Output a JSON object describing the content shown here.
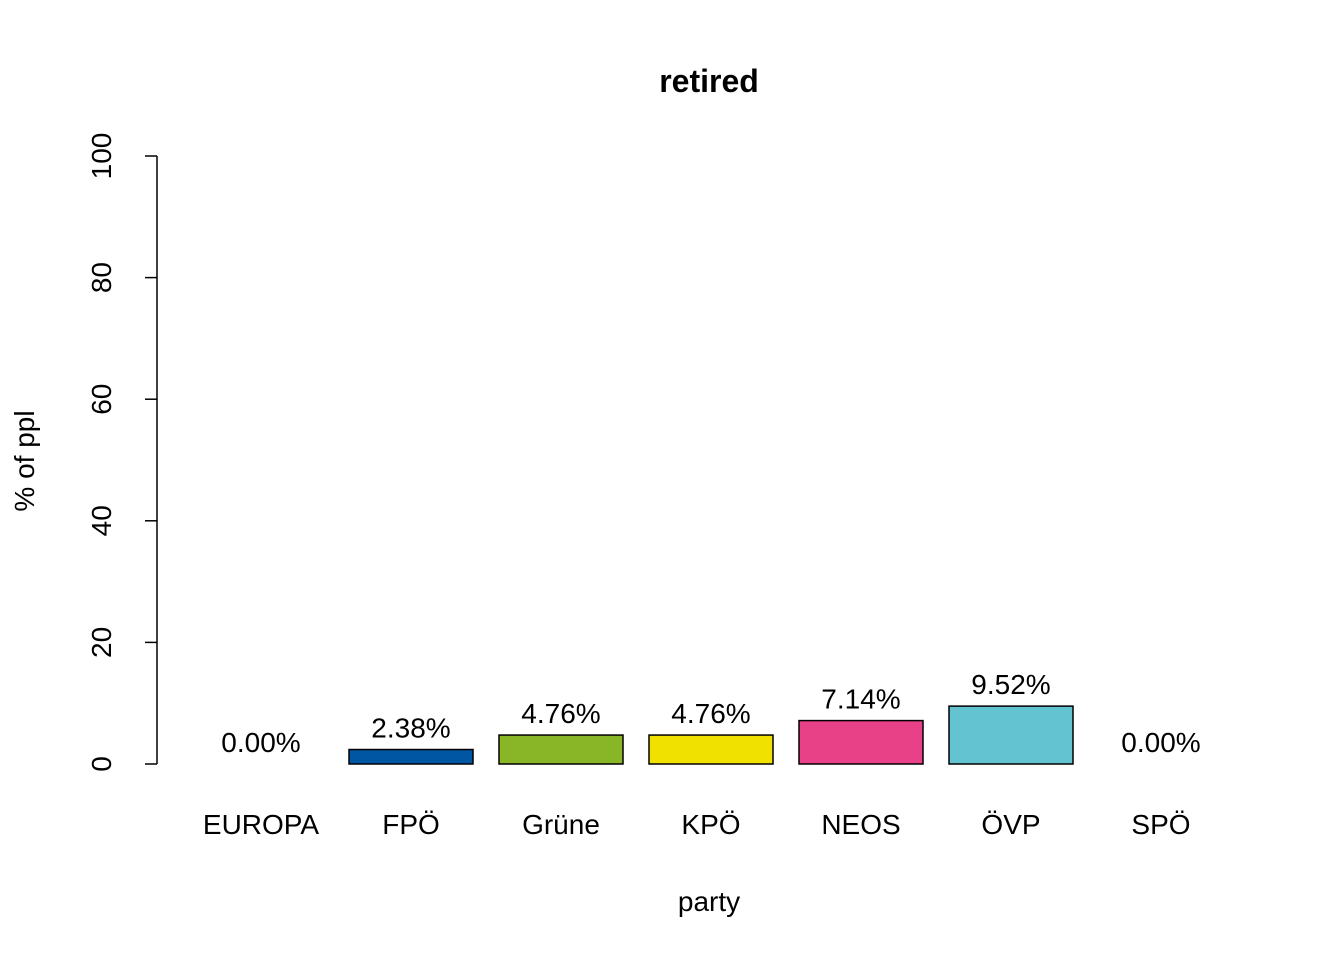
{
  "chart_data": {
    "type": "bar",
    "title": "retired",
    "xlabel": "party",
    "ylabel": "% of ppl",
    "ylim": [
      0,
      100
    ],
    "yticks": [
      0,
      20,
      40,
      60,
      80,
      100
    ],
    "categories": [
      "EUROPA",
      "FPÖ",
      "Grüne",
      "KPÖ",
      "NEOS",
      "ÖVP",
      "SPÖ"
    ],
    "values": [
      0.0,
      2.38,
      4.76,
      4.76,
      7.14,
      9.52,
      0.0
    ],
    "value_labels": [
      "0.00%",
      "2.38%",
      "4.76%",
      "4.76%",
      "7.14%",
      "9.52%",
      "0.00%"
    ],
    "colors": [
      "#ffffff",
      "#0056a2",
      "#88b626",
      "#f0e100",
      "#e84188",
      "#63c3d0",
      "#ffffff"
    ],
    "grid": false,
    "legend": "none"
  }
}
